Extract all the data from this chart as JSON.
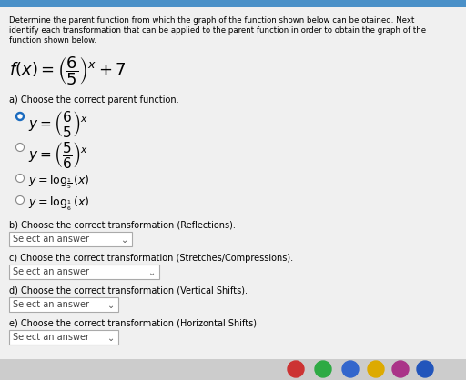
{
  "bg_color": "#e8e8e8",
  "top_bar_color": "#4a90c8",
  "content_bg": "#f0f0f0",
  "text_color": "#000000",
  "title_line1": "Determine the parent function from which the graph of the function shown below can be otained. Next",
  "title_line2": "identify each transformation that can be applied to the parent function in order to obtain the graph of the",
  "title_line3": "function shown below.",
  "section_a_label": "a) Choose the correct parent function.",
  "section_b_label": "b) Choose the correct transformation (Reflections).",
  "section_c_label": "c) Choose the correct transformation (Stretches/Compressions).",
  "section_d_label": "d) Choose the correct transformation (Vertical Shifts).",
  "section_e_label": "e) Choose the correct transformation (Horizontal Shifts).",
  "dropdown_text": "Select an answer",
  "radio_selected_color": "#1a6bbf",
  "dropdown_bg": "#ffffff",
  "dropdown_border": "#aaaaaa",
  "taskbar_colors": [
    "#cc3333",
    "#2eaa44",
    "#3366cc",
    "#ddaa00",
    "#aa3388",
    "#2255bb"
  ],
  "taskbar_bg": "#cccccc"
}
